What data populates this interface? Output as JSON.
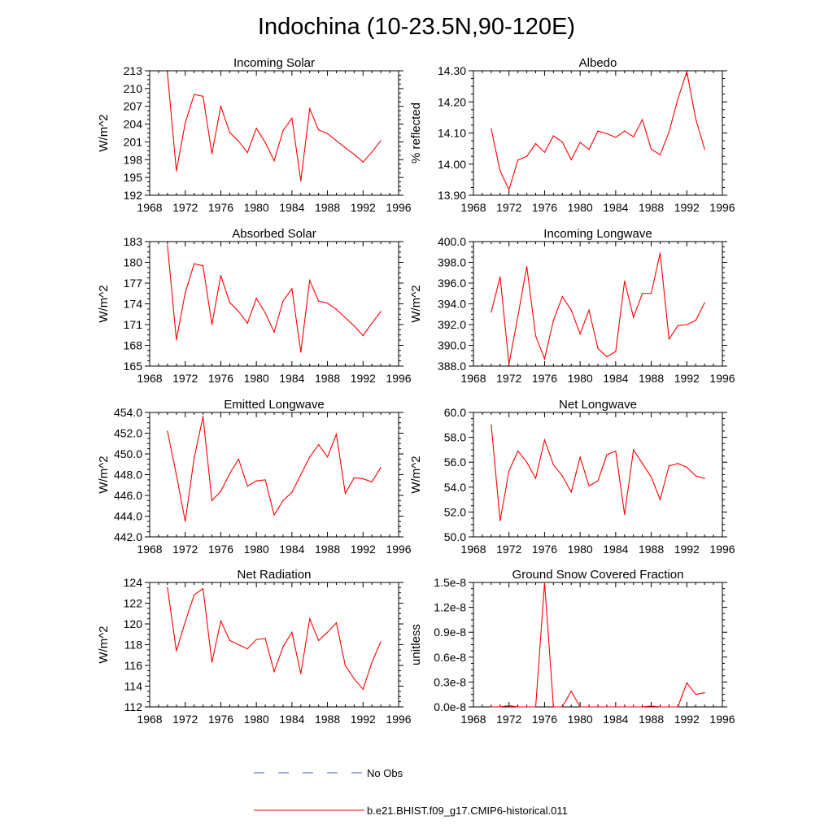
{
  "title": "Indochina (10-23.5N,90-120E)",
  "chart_data": [
    {
      "type": "line",
      "title": "Incoming Solar",
      "ylabel": "W/m^2",
      "xlim": [
        1968,
        1996
      ],
      "xticks": [
        1968,
        1972,
        1976,
        1980,
        1984,
        1988,
        1992,
        1996
      ],
      "ylim": [
        192,
        213
      ],
      "yticks": [
        192,
        195,
        198,
        201,
        204,
        207,
        210,
        213
      ],
      "ytick_labels": [
        "192",
        "195",
        "198",
        "201",
        "204",
        "207",
        "210",
        "213"
      ],
      "x": [
        1970,
        1971,
        1972,
        1973,
        1974,
        1975,
        1976,
        1977,
        1978,
        1979,
        1980,
        1981,
        1982,
        1983,
        1984,
        1985,
        1986,
        1987,
        1988,
        1989,
        1990,
        1991,
        1992,
        1993,
        1994
      ],
      "series": [
        {
          "name": "b.e21.BHIST.f09_g17.CMIP6-historical.011",
          "color": "#ff0000",
          "values": [
            212.6,
            196.1,
            204.2,
            209.0,
            208.7,
            199.0,
            207.0,
            202.6,
            201.1,
            199.2,
            203.3,
            200.9,
            197.8,
            202.9,
            205.0,
            194.4,
            206.6,
            203.0,
            202.4,
            201.2,
            200.0,
            198.9,
            197.6,
            199.3,
            201.2
          ]
        }
      ]
    },
    {
      "type": "line",
      "title": "Albedo",
      "ylabel": "% reflected",
      "xlim": [
        1968,
        1996
      ],
      "xticks": [
        1968,
        1972,
        1976,
        1980,
        1984,
        1988,
        1992,
        1996
      ],
      "ylim": [
        13.9,
        14.3
      ],
      "yticks": [
        13.9,
        14.0,
        14.1,
        14.2,
        14.3
      ],
      "ytick_labels": [
        "13.90",
        "14.00",
        "14.10",
        "14.20",
        "14.30"
      ],
      "x": [
        1970,
        1971,
        1972,
        1973,
        1974,
        1975,
        1976,
        1977,
        1978,
        1979,
        1980,
        1981,
        1982,
        1983,
        1984,
        1985,
        1986,
        1987,
        1988,
        1989,
        1990,
        1991,
        1992,
        1993,
        1994
      ],
      "series": [
        {
          "name": "b.e21.BHIST.f09_g17.CMIP6-historical.011",
          "color": "#ff0000",
          "values": [
            14.113,
            13.978,
            13.918,
            14.013,
            14.025,
            14.066,
            14.038,
            14.091,
            14.071,
            14.014,
            14.07,
            14.047,
            14.106,
            14.098,
            14.086,
            14.106,
            14.088,
            14.143,
            14.048,
            14.03,
            14.103,
            14.21,
            14.297,
            14.146,
            14.048
          ]
        }
      ]
    },
    {
      "type": "line",
      "title": "Absorbed Solar",
      "ylabel": "W/m^2",
      "xlim": [
        1968,
        1996
      ],
      "xticks": [
        1968,
        1972,
        1976,
        1980,
        1984,
        1988,
        1992,
        1996
      ],
      "ylim": [
        165,
        183
      ],
      "yticks": [
        165,
        168,
        171,
        174,
        177,
        180,
        183
      ],
      "ytick_labels": [
        "165",
        "168",
        "171",
        "174",
        "177",
        "180",
        "183"
      ],
      "x": [
        1970,
        1971,
        1972,
        1973,
        1974,
        1975,
        1976,
        1977,
        1978,
        1979,
        1980,
        1981,
        1982,
        1983,
        1984,
        1985,
        1986,
        1987,
        1988,
        1989,
        1990,
        1991,
        1992,
        1993,
        1994
      ],
      "series": [
        {
          "name": "b.e21.BHIST.f09_g17.CMIP6-historical.011",
          "color": "#ff0000",
          "values": [
            182.5,
            168.8,
            175.6,
            179.8,
            179.5,
            171.0,
            178.1,
            174.2,
            172.9,
            171.2,
            174.8,
            172.7,
            169.9,
            174.4,
            176.2,
            167.0,
            177.4,
            174.4,
            174.1,
            173.2,
            172.0,
            170.8,
            169.4,
            171.2,
            172.9
          ]
        }
      ]
    },
    {
      "type": "line",
      "title": "Incoming Longwave",
      "ylabel": "W/m^2",
      "xlim": [
        1968,
        1996
      ],
      "xticks": [
        1968,
        1972,
        1976,
        1980,
        1984,
        1988,
        1992,
        1996
      ],
      "ylim": [
        388,
        400
      ],
      "yticks": [
        388,
        390,
        392,
        394,
        396,
        398,
        400
      ],
      "ytick_labels": [
        "388.0",
        "390.0",
        "392.0",
        "394.0",
        "396.0",
        "398.0",
        "400.0"
      ],
      "x": [
        1970,
        1971,
        1972,
        1973,
        1974,
        1975,
        1976,
        1977,
        1978,
        1979,
        1980,
        1981,
        1982,
        1983,
        1984,
        1985,
        1986,
        1987,
        1988,
        1989,
        1990,
        1991,
        1992,
        1993,
        1994
      ],
      "series": [
        {
          "name": "b.e21.BHIST.f09_g17.CMIP6-historical.011",
          "color": "#ff0000",
          "values": [
            393.2,
            396.6,
            388.2,
            392.8,
            397.6,
            390.9,
            388.7,
            392.4,
            394.7,
            393.4,
            391.1,
            393.4,
            389.7,
            388.9,
            389.4,
            396.2,
            392.7,
            395.0,
            395.0,
            398.9,
            390.6,
            391.9,
            392.0,
            392.4,
            394.1
          ]
        }
      ]
    },
    {
      "type": "line",
      "title": "Emitted Longwave",
      "ylabel": "W/m^2",
      "xlim": [
        1968,
        1996
      ],
      "xticks": [
        1968,
        1972,
        1976,
        1980,
        1984,
        1988,
        1992,
        1996
      ],
      "ylim": [
        442,
        454
      ],
      "yticks": [
        442,
        444,
        446,
        448,
        450,
        452,
        454
      ],
      "ytick_labels": [
        "442.0",
        "444.0",
        "446.0",
        "448.0",
        "450.0",
        "452.0",
        "454.0"
      ],
      "x": [
        1970,
        1971,
        1972,
        1973,
        1974,
        1975,
        1976,
        1977,
        1978,
        1979,
        1980,
        1981,
        1982,
        1983,
        1984,
        1985,
        1986,
        1987,
        1988,
        1989,
        1990,
        1991,
        1992,
        1993,
        1994
      ],
      "series": [
        {
          "name": "b.e21.BHIST.f09_g17.CMIP6-historical.011",
          "color": "#ff0000",
          "values": [
            452.2,
            448.0,
            443.5,
            449.6,
            453.6,
            445.5,
            446.4,
            448.1,
            449.5,
            446.9,
            447.4,
            447.5,
            444.1,
            445.5,
            446.3,
            448.0,
            449.7,
            450.9,
            449.7,
            451.9,
            446.2,
            447.7,
            447.6,
            447.3,
            448.7
          ]
        }
      ]
    },
    {
      "type": "line",
      "title": "Net Longwave",
      "ylabel": "W/m^2",
      "xlim": [
        1968,
        1996
      ],
      "xticks": [
        1968,
        1972,
        1976,
        1980,
        1984,
        1988,
        1992,
        1996
      ],
      "ylim": [
        50,
        60
      ],
      "yticks": [
        50,
        52,
        54,
        56,
        58,
        60
      ],
      "ytick_labels": [
        "50.0",
        "52.0",
        "54.0",
        "56.0",
        "58.0",
        "60.0"
      ],
      "x": [
        1970,
        1971,
        1972,
        1973,
        1974,
        1975,
        1976,
        1977,
        1978,
        1979,
        1980,
        1981,
        1982,
        1983,
        1984,
        1985,
        1986,
        1987,
        1988,
        1989,
        1990,
        1991,
        1992,
        1993,
        1994
      ],
      "series": [
        {
          "name": "b.e21.BHIST.f09_g17.CMIP6-historical.011",
          "color": "#ff0000",
          "values": [
            59.0,
            51.3,
            55.3,
            56.9,
            56.0,
            54.7,
            57.8,
            55.8,
            54.9,
            53.6,
            56.4,
            54.1,
            54.5,
            56.6,
            56.9,
            51.8,
            57.0,
            55.9,
            54.8,
            53.0,
            55.7,
            55.9,
            55.6,
            54.9,
            54.7
          ]
        }
      ]
    },
    {
      "type": "line",
      "title": "Net Radiation",
      "ylabel": "W/m^2",
      "xlim": [
        1968,
        1996
      ],
      "xticks": [
        1968,
        1972,
        1976,
        1980,
        1984,
        1988,
        1992,
        1996
      ],
      "ylim": [
        112,
        124
      ],
      "yticks": [
        112,
        114,
        116,
        118,
        120,
        122,
        124
      ],
      "ytick_labels": [
        "112",
        "114",
        "116",
        "118",
        "120",
        "122",
        "124"
      ],
      "x": [
        1970,
        1971,
        1972,
        1973,
        1974,
        1975,
        1976,
        1977,
        1978,
        1979,
        1980,
        1981,
        1982,
        1983,
        1984,
        1985,
        1986,
        1987,
        1988,
        1989,
        1990,
        1991,
        1992,
        1993,
        1994
      ],
      "series": [
        {
          "name": "b.e21.BHIST.f09_g17.CMIP6-historical.011",
          "color": "#ff0000",
          "values": [
            123.5,
            117.4,
            120.2,
            122.8,
            123.4,
            116.3,
            120.3,
            118.4,
            118.0,
            117.6,
            118.5,
            118.6,
            115.4,
            117.8,
            119.2,
            115.2,
            120.5,
            118.4,
            119.2,
            120.1,
            116.0,
            114.7,
            113.7,
            116.3,
            118.3
          ]
        }
      ]
    },
    {
      "type": "line",
      "title": "Ground Snow Covered Fraction",
      "ylabel": "unitless",
      "xlim": [
        1968,
        1996
      ],
      "xticks": [
        1968,
        1972,
        1976,
        1980,
        1984,
        1988,
        1992,
        1996
      ],
      "ylim": [
        0,
        1.5e-08
      ],
      "yticks": [
        0,
        3e-09,
        6e-09,
        9e-09,
        1.2e-08,
        1.5e-08
      ],
      "ytick_labels": [
        "0.0e-8",
        "0.3e-8",
        "0.6e-8",
        "0.9e-8",
        "1.2e-8",
        "1.5e-8"
      ],
      "x": [
        1970,
        1971,
        1972,
        1973,
        1974,
        1975,
        1976,
        1977,
        1978,
        1979,
        1980,
        1981,
        1982,
        1983,
        1984,
        1985,
        1986,
        1987,
        1988,
        1989,
        1990,
        1991,
        1992,
        1993,
        1994
      ],
      "series": [
        {
          "name": "b.e21.BHIST.f09_g17.CMIP6-historical.011",
          "color": "#ff0000",
          "values": [
            0,
            0,
            1.5e-10,
            0,
            0,
            0,
            1.5e-08,
            0,
            0,
            1.9e-09,
            0,
            0,
            0,
            0,
            0,
            0,
            0,
            0,
            1e-10,
            0,
            0,
            0,
            2.9e-09,
            1.5e-09,
            1.7e-09
          ]
        }
      ]
    }
  ],
  "legend": [
    {
      "label": "No Obs",
      "color": "#4a5bc4",
      "dash": true
    },
    {
      "label": "b.e21.BHIST.f09_g17.CMIP6-historical.011",
      "color": "#ff0000",
      "dash": false
    }
  ]
}
